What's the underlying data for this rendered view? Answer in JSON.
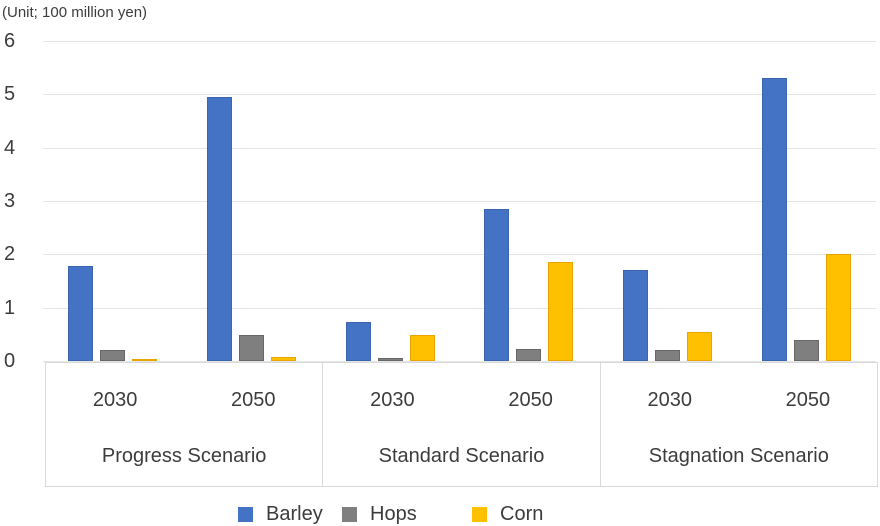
{
  "unit_note": "(Unit; 100 million yen)",
  "colors": {
    "barley": "#4472c4",
    "barley_border": "#3a66b0",
    "hops": "#7f7f7f",
    "hops_border": "#686868",
    "corn": "#ffc000",
    "corn_border": "#e8a400",
    "gridline": "#e5e5e5",
    "box_border": "#d9d9d9",
    "text": "#3c3c3c"
  },
  "chart_data": {
    "type": "bar",
    "title": "(Unit; 100 million yen)",
    "ylabel": "",
    "xlabel": "",
    "ylim": [
      0,
      6
    ],
    "y_ticks": [
      0,
      1,
      2,
      3,
      4,
      5,
      6
    ],
    "grid": "horizontal",
    "legend_position": "bottom",
    "group_labels": [
      "Progress Scenario",
      "Standard Scenario",
      "Stagnation Scenario"
    ],
    "sub_labels": [
      "2030",
      "2050"
    ],
    "categories": [
      "Progress Scenario 2030",
      "Progress Scenario 2050",
      "Standard Scenario 2030",
      "Standard Scenario 2050",
      "Stagnation Scenario 2030",
      "Stagnation Scenario 2050"
    ],
    "series": [
      {
        "name": "Barley",
        "color": "#4472c4",
        "border_color": "#3a66b0",
        "values": [
          1.78,
          4.95,
          0.73,
          2.85,
          1.7,
          5.3
        ]
      },
      {
        "name": "Hops",
        "color": "#7f7f7f",
        "border_color": "#686868",
        "values": [
          0.2,
          0.48,
          0.05,
          0.22,
          0.2,
          0.4
        ]
      },
      {
        "name": "Corn",
        "color": "#ffc000",
        "border_color": "#e8a400",
        "values": [
          0.03,
          0.08,
          0.48,
          1.85,
          0.55,
          2.0
        ]
      }
    ]
  }
}
